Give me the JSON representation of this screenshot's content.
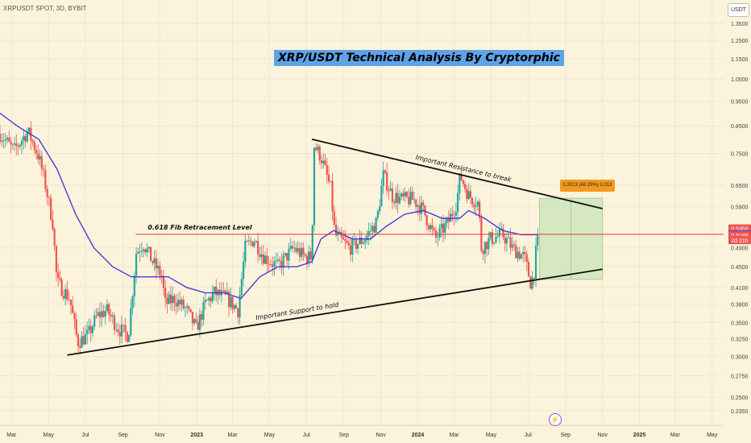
{
  "header": {
    "symbol_line": "XRPUSDT SPOT, 3D, BYBIT",
    "currency_button": "USDT"
  },
  "title": "XRP/USDT Technical Analysis By Cryptorphic",
  "colors": {
    "background": "#fbf3dc",
    "up_candle": "#26a69a",
    "down_candle": "#ef5350",
    "moving_average": "#4a3bd8",
    "fib_line": "#e53935",
    "trendline": "#111111",
    "target_box": "#c9e4b8",
    "title_bg": "#5fa3e7",
    "target_tag": "#f39a1e"
  },
  "chart_data": {
    "type": "candlestick",
    "symbol": "XRPUSDT",
    "exchange": "BYBIT",
    "interval": "3D",
    "y_scale": "log",
    "ylim": [
      0.22,
      1.5
    ],
    "y_ticks": [
      "1.3500",
      "1.2500",
      "1.1500",
      "1.0500",
      "0.9500",
      "0.8500",
      "0.7500",
      "0.6500",
      "0.5900",
      "0.4900",
      "0.4500",
      "0.4100",
      "0.3800",
      "0.3500",
      "0.3250",
      "0.3000",
      "0.2750",
      "0.2500",
      "0.2350"
    ],
    "x_ticks": [
      "Mar",
      "May",
      "Jul",
      "Sep",
      "Nov",
      "2023",
      "Mar",
      "May",
      "Jul",
      "Sep",
      "Nov",
      "2024",
      "Mar",
      "May",
      "Jul",
      "Sep",
      "Nov",
      "2025",
      "Mar",
      "May"
    ],
    "x_start": "2022-02-10",
    "x_end": "2025-05-20",
    "price_path": [
      [
        "2022-02-10",
        0.82
      ],
      [
        "2022-03-05",
        0.76
      ],
      [
        "2022-03-28",
        0.83
      ],
      [
        "2022-04-15",
        0.74
      ],
      [
        "2022-04-25",
        0.66
      ],
      [
        "2022-05-08",
        0.55
      ],
      [
        "2022-05-15",
        0.42
      ],
      [
        "2022-06-05",
        0.39
      ],
      [
        "2022-06-18",
        0.32
      ],
      [
        "2022-07-05",
        0.33
      ],
      [
        "2022-07-20",
        0.36
      ],
      [
        "2022-08-05",
        0.37
      ],
      [
        "2022-08-25",
        0.34
      ],
      [
        "2022-09-10",
        0.33
      ],
      [
        "2022-09-23",
        0.48
      ],
      [
        "2022-10-05",
        0.5
      ],
      [
        "2022-10-20",
        0.46
      ],
      [
        "2022-11-05",
        0.43
      ],
      [
        "2022-11-09",
        0.38
      ],
      [
        "2022-11-25",
        0.39
      ],
      [
        "2022-12-15",
        0.37
      ],
      [
        "2022-12-31",
        0.34
      ],
      [
        "2023-01-15",
        0.38
      ],
      [
        "2023-01-30",
        0.4
      ],
      [
        "2023-02-20",
        0.39
      ],
      [
        "2023-03-10",
        0.37
      ],
      [
        "2023-03-22",
        0.49
      ],
      [
        "2023-04-05",
        0.51
      ],
      [
        "2023-04-22",
        0.47
      ],
      [
        "2023-05-15",
        0.45
      ],
      [
        "2023-06-10",
        0.49
      ],
      [
        "2023-06-28",
        0.47
      ],
      [
        "2023-07-10",
        0.47
      ],
      [
        "2023-07-13",
        0.78
      ],
      [
        "2023-07-25",
        0.74
      ],
      [
        "2023-08-10",
        0.64
      ],
      [
        "2023-08-17",
        0.52
      ],
      [
        "2023-09-10",
        0.49
      ],
      [
        "2023-10-05",
        0.51
      ],
      [
        "2023-10-25",
        0.55
      ],
      [
        "2023-11-05",
        0.68
      ],
      [
        "2023-11-20",
        0.62
      ],
      [
        "2023-12-05",
        0.61
      ],
      [
        "2023-12-25",
        0.61
      ],
      [
        "2024-01-10",
        0.58
      ],
      [
        "2024-01-30",
        0.51
      ],
      [
        "2024-02-20",
        0.55
      ],
      [
        "2024-03-05",
        0.6
      ],
      [
        "2024-03-11",
        0.68
      ],
      [
        "2024-03-25",
        0.62
      ],
      [
        "2024-04-10",
        0.6
      ],
      [
        "2024-04-15",
        0.49
      ],
      [
        "2024-04-30",
        0.51
      ],
      [
        "2024-05-20",
        0.52
      ],
      [
        "2024-06-05",
        0.49
      ],
      [
        "2024-06-25",
        0.47
      ],
      [
        "2024-07-05",
        0.42
      ],
      [
        "2024-07-10",
        0.43
      ],
      [
        "2024-07-17",
        0.52
      ]
    ],
    "moving_average_path": [
      [
        "2022-02-10",
        0.9
      ],
      [
        "2022-03-10",
        0.85
      ],
      [
        "2022-04-15",
        0.8
      ],
      [
        "2022-05-15",
        0.7
      ],
      [
        "2022-06-15",
        0.57
      ],
      [
        "2022-07-15",
        0.49
      ],
      [
        "2022-08-15",
        0.45
      ],
      [
        "2022-09-15",
        0.43
      ],
      [
        "2022-10-15",
        0.43
      ],
      [
        "2022-11-15",
        0.43
      ],
      [
        "2022-12-15",
        0.41
      ],
      [
        "2023-01-15",
        0.4
      ],
      [
        "2023-02-15",
        0.4
      ],
      [
        "2023-03-15",
        0.39
      ],
      [
        "2023-04-15",
        0.43
      ],
      [
        "2023-05-15",
        0.45
      ],
      [
        "2023-06-15",
        0.45
      ],
      [
        "2023-07-10",
        0.46
      ],
      [
        "2023-07-25",
        0.51
      ],
      [
        "2023-08-15",
        0.53
      ],
      [
        "2023-09-15",
        0.51
      ],
      [
        "2023-10-15",
        0.51
      ],
      [
        "2023-11-10",
        0.54
      ],
      [
        "2023-12-10",
        0.57
      ],
      [
        "2024-01-10",
        0.58
      ],
      [
        "2024-02-10",
        0.56
      ],
      [
        "2024-03-10",
        0.56
      ],
      [
        "2024-03-25",
        0.58
      ],
      [
        "2024-04-20",
        0.56
      ],
      [
        "2024-05-20",
        0.53
      ],
      [
        "2024-06-20",
        0.52
      ],
      [
        "2024-07-17",
        0.52
      ]
    ],
    "overlays": {
      "fib_label": "0.618 Fib Retracement Level",
      "fib_price": 0.5211,
      "fib_from": "2022-09-22",
      "support_label": "Important Support to hold",
      "support_line": [
        [
          "2022-06-01",
          0.302
        ],
        [
          "2024-11-01",
          0.445
        ]
      ],
      "resistance_label": "Important Resistance to break",
      "resistance_line": [
        [
          "2023-07-10",
          0.8
        ],
        [
          "2024-11-01",
          0.585
        ]
      ],
      "target_box": {
        "from": "2024-07-20",
        "to": "2024-11-01",
        "top": 0.613,
        "bottom": 0.425
      },
      "target_label": "0.2013 (48.29%) 2.013"
    },
    "price_labels": [
      {
        "text": "0.5350",
        "value": 0.535,
        "color": "#ef5350"
      },
      {
        "text": "0.5211",
        "value": 0.5211,
        "color": "#4a3bd8"
      },
      {
        "text": "0.5188",
        "value": 0.5188,
        "color": "#ef5350"
      },
      {
        "text": "2d 21h",
        "value": 0.5075,
        "color": "#ef5350"
      }
    ]
  }
}
